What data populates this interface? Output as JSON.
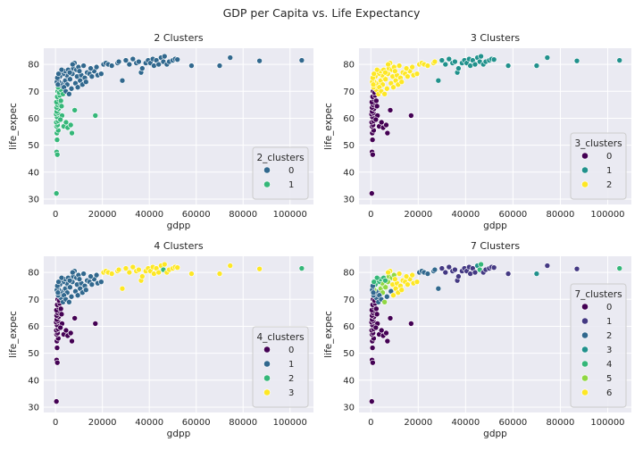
{
  "figure_title": "GDP per Capita vs. Life Expectancy",
  "chart_data": [
    {
      "type": "scatter",
      "title": "2 Clusters",
      "xlabel": "gdpp",
      "ylabel": "life_expec",
      "xlim": [
        -5000,
        110000
      ],
      "ylim": [
        28,
        86
      ],
      "xticks": [
        0,
        20000,
        40000,
        60000,
        80000,
        100000
      ],
      "xtick_labels": [
        "0",
        "20000",
        "40000",
        "60000",
        "80000",
        "100000"
      ],
      "yticks": [
        30,
        40,
        50,
        60,
        70,
        80
      ],
      "ytick_labels": [
        "30",
        "40",
        "50",
        "60",
        "70",
        "80"
      ],
      "legend_title": "2_clusters",
      "legend_position": "lower-right",
      "clusters": [
        {
          "label": "0",
          "color": "#31688e"
        },
        {
          "label": "1",
          "color": "#35b779"
        }
      ]
    },
    {
      "type": "scatter",
      "title": "3 Clusters",
      "xlabel": "gdpp",
      "ylabel": "life_expec",
      "xlim": [
        -5000,
        110000
      ],
      "ylim": [
        28,
        86
      ],
      "xticks": [
        0,
        20000,
        40000,
        60000,
        80000,
        100000
      ],
      "xtick_labels": [
        "0",
        "20000",
        "40000",
        "60000",
        "80000",
        "100000"
      ],
      "yticks": [
        30,
        40,
        50,
        60,
        70,
        80
      ],
      "ytick_labels": [
        "30",
        "40",
        "50",
        "60",
        "70",
        "80"
      ],
      "legend_title": "3_clusters",
      "legend_position": "lower-right",
      "clusters": [
        {
          "label": "0",
          "color": "#440154"
        },
        {
          "label": "1",
          "color": "#21918c"
        },
        {
          "label": "2",
          "color": "#fde725"
        }
      ]
    },
    {
      "type": "scatter",
      "title": "4 Clusters",
      "xlabel": "gdpp",
      "ylabel": "life_expec",
      "xlim": [
        -5000,
        110000
      ],
      "ylim": [
        28,
        86
      ],
      "xticks": [
        0,
        20000,
        40000,
        60000,
        80000,
        100000
      ],
      "xtick_labels": [
        "0",
        "20000",
        "40000",
        "60000",
        "80000",
        "100000"
      ],
      "yticks": [
        30,
        40,
        50,
        60,
        70,
        80
      ],
      "ytick_labels": [
        "30",
        "40",
        "50",
        "60",
        "70",
        "80"
      ],
      "legend_title": "4_clusters",
      "legend_position": "lower-right",
      "clusters": [
        {
          "label": "0",
          "color": "#440154"
        },
        {
          "label": "1",
          "color": "#31688e"
        },
        {
          "label": "2",
          "color": "#35b779"
        },
        {
          "label": "3",
          "color": "#fde725"
        }
      ]
    },
    {
      "type": "scatter",
      "title": "7 Clusters",
      "xlabel": "gdpp",
      "ylabel": "life_expec",
      "xlim": [
        -5000,
        110000
      ],
      "ylim": [
        28,
        86
      ],
      "xticks": [
        0,
        20000,
        40000,
        60000,
        80000,
        100000
      ],
      "xtick_labels": [
        "0",
        "20000",
        "40000",
        "60000",
        "80000",
        "100000"
      ],
      "yticks": [
        30,
        40,
        50,
        60,
        70,
        80
      ],
      "ytick_labels": [
        "30",
        "40",
        "50",
        "60",
        "70",
        "80"
      ],
      "legend_title": "7_clusters",
      "legend_position": "lower-right",
      "clusters": [
        {
          "label": "0",
          "color": "#440154"
        },
        {
          "label": "1",
          "color": "#443983"
        },
        {
          "label": "2",
          "color": "#31688e"
        },
        {
          "label": "3",
          "color": "#21918c"
        },
        {
          "label": "4",
          "color": "#35b779"
        },
        {
          "label": "5",
          "color": "#90d743"
        },
        {
          "label": "6",
          "color": "#fde725"
        }
      ]
    }
  ],
  "points": {
    "columns": [
      "gdpp",
      "life_expec",
      "k2",
      "k3",
      "k4",
      "k7"
    ],
    "rows": [
      [
        400,
        32.1,
        1,
        0,
        0,
        0
      ],
      [
        500,
        47.5,
        1,
        0,
        0,
        0
      ],
      [
        800,
        46.5,
        1,
        0,
        0,
        0
      ],
      [
        700,
        52,
        1,
        0,
        0,
        0
      ],
      [
        600,
        54.5,
        1,
        0,
        0,
        0
      ],
      [
        1200,
        55.5,
        1,
        0,
        0,
        0
      ],
      [
        450,
        57,
        1,
        0,
        0,
        0
      ],
      [
        900,
        57.5,
        1,
        0,
        0,
        0
      ],
      [
        350,
        58.5,
        1,
        0,
        0,
        0
      ],
      [
        1100,
        59,
        1,
        0,
        0,
        0
      ],
      [
        1500,
        60,
        1,
        0,
        0,
        0
      ],
      [
        650,
        60.5,
        1,
        0,
        0,
        0
      ],
      [
        300,
        61.5,
        1,
        0,
        0,
        0
      ],
      [
        1000,
        62,
        1,
        0,
        0,
        0
      ],
      [
        550,
        62.5,
        1,
        0,
        0,
        0
      ],
      [
        1300,
        63.5,
        1,
        0,
        0,
        0
      ],
      [
        480,
        64,
        1,
        0,
        0,
        0
      ],
      [
        850,
        65,
        1,
        0,
        0,
        0
      ],
      [
        1700,
        65.5,
        1,
        0,
        0,
        0
      ],
      [
        420,
        66,
        1,
        0,
        0,
        0
      ],
      [
        1400,
        67,
        1,
        0,
        0,
        0
      ],
      [
        750,
        68,
        1,
        0,
        0,
        0
      ],
      [
        1800,
        68.5,
        1,
        0,
        0,
        0
      ],
      [
        2300,
        66.5,
        1,
        0,
        0,
        0
      ],
      [
        2600,
        64.5,
        1,
        0,
        0,
        0
      ],
      [
        2800,
        61,
        1,
        0,
        0,
        0
      ],
      [
        2100,
        59.5,
        1,
        0,
        0,
        0
      ],
      [
        3500,
        57,
        1,
        0,
        0,
        0
      ],
      [
        4500,
        58.5,
        1,
        0,
        0,
        0
      ],
      [
        5200,
        56.5,
        1,
        0,
        0,
        0
      ],
      [
        7000,
        54.5,
        1,
        0,
        0,
        0
      ],
      [
        6500,
        57.5,
        1,
        0,
        0,
        0
      ],
      [
        8200,
        63,
        1,
        0,
        0,
        0
      ],
      [
        17000,
        61,
        1,
        0,
        0,
        0
      ],
      [
        950,
        70,
        1,
        0,
        0,
        0
      ],
      [
        1600,
        69.5,
        1,
        0,
        0,
        0
      ],
      [
        2400,
        70.5,
        1,
        2,
        1,
        2
      ],
      [
        1150,
        71.5,
        1,
        2,
        1,
        2
      ],
      [
        3200,
        69,
        1,
        2,
        1,
        2
      ],
      [
        2900,
        72,
        0,
        2,
        1,
        2
      ],
      [
        3800,
        73.5,
        0,
        2,
        1,
        2
      ],
      [
        2200,
        73,
        0,
        2,
        1,
        2
      ],
      [
        4200,
        74,
        0,
        2,
        1,
        5
      ],
      [
        5000,
        72.5,
        0,
        2,
        1,
        5
      ],
      [
        5600,
        75,
        0,
        2,
        1,
        5
      ],
      [
        6200,
        74.5,
        0,
        2,
        1,
        5
      ],
      [
        4800,
        76,
        0,
        2,
        1,
        5
      ],
      [
        7200,
        76.5,
        0,
        2,
        1,
        5
      ],
      [
        6800,
        71,
        0,
        2,
        1,
        2
      ],
      [
        8500,
        73,
        0,
        2,
        1,
        2
      ],
      [
        9200,
        75.5,
        0,
        2,
        1,
        6
      ],
      [
        10500,
        74,
        0,
        2,
        1,
        6
      ],
      [
        11000,
        76,
        0,
        2,
        1,
        6
      ],
      [
        12500,
        75,
        0,
        2,
        1,
        6
      ],
      [
        3300,
        76.5,
        0,
        2,
        1,
        4
      ],
      [
        4100,
        77.5,
        0,
        2,
        1,
        4
      ],
      [
        5400,
        78,
        0,
        2,
        1,
        4
      ],
      [
        6100,
        77,
        0,
        2,
        1,
        4
      ],
      [
        7600,
        78.5,
        0,
        2,
        1,
        5
      ],
      [
        8900,
        78,
        0,
        2,
        1,
        5
      ],
      [
        9800,
        79,
        0,
        2,
        1,
        5
      ],
      [
        8100,
        80.5,
        0,
        2,
        1,
        6
      ],
      [
        7300,
        80,
        0,
        2,
        1,
        6
      ],
      [
        10200,
        77.5,
        0,
        2,
        1,
        6
      ],
      [
        12000,
        79.5,
        0,
        2,
        1,
        6
      ],
      [
        13500,
        77,
        0,
        2,
        1,
        6
      ],
      [
        14500,
        76.5,
        0,
        2,
        1,
        6
      ],
      [
        15500,
        75.5,
        0,
        2,
        1,
        6
      ],
      [
        16500,
        77.5,
        0,
        2,
        1,
        6
      ],
      [
        18000,
        76,
        0,
        2,
        1,
        6
      ],
      [
        19500,
        76.5,
        0,
        2,
        1,
        6
      ],
      [
        20500,
        80,
        0,
        2,
        3,
        2
      ],
      [
        21500,
        80.5,
        0,
        2,
        3,
        2
      ],
      [
        22500,
        80,
        0,
        2,
        3,
        2
      ],
      [
        24000,
        79.5,
        0,
        2,
        3,
        2
      ],
      [
        26500,
        80.5,
        0,
        2,
        3,
        2
      ],
      [
        28500,
        74,
        0,
        1,
        3,
        2
      ],
      [
        27000,
        81,
        0,
        2,
        3,
        2
      ],
      [
        30000,
        81.5,
        0,
        1,
        3,
        1
      ],
      [
        31500,
        80,
        0,
        1,
        3,
        1
      ],
      [
        33000,
        82,
        0,
        1,
        3,
        1
      ],
      [
        34500,
        80.5,
        0,
        1,
        3,
        1
      ],
      [
        35500,
        81,
        0,
        1,
        3,
        1
      ],
      [
        36500,
        77,
        0,
        1,
        3,
        1
      ],
      [
        37000,
        78.5,
        0,
        1,
        3,
        1
      ],
      [
        38500,
        80.5,
        0,
        1,
        3,
        1
      ],
      [
        39500,
        81.5,
        0,
        1,
        3,
        1
      ],
      [
        40500,
        80.5,
        0,
        1,
        3,
        1
      ],
      [
        41500,
        82,
        0,
        1,
        3,
        1
      ],
      [
        42000,
        79.5,
        0,
        1,
        3,
        1
      ],
      [
        43000,
        81.5,
        0,
        1,
        3,
        1
      ],
      [
        44000,
        80,
        0,
        1,
        3,
        1
      ],
      [
        45000,
        82.5,
        0,
        1,
        3,
        3
      ],
      [
        46000,
        81,
        0,
        1,
        2,
        4
      ],
      [
        46500,
        83,
        0,
        1,
        3,
        4
      ],
      [
        47500,
        80,
        0,
        1,
        3,
        1
      ],
      [
        48500,
        81,
        0,
        1,
        3,
        1
      ],
      [
        50000,
        81.5,
        0,
        1,
        3,
        1
      ],
      [
        51000,
        82,
        0,
        1,
        3,
        1
      ],
      [
        52000,
        81.8,
        0,
        1,
        3,
        1
      ],
      [
        58000,
        79.5,
        0,
        1,
        3,
        1
      ],
      [
        70000,
        79.5,
        0,
        1,
        3,
        3
      ],
      [
        74500,
        82.5,
        0,
        1,
        3,
        1
      ],
      [
        87000,
        81.3,
        0,
        1,
        3,
        1
      ],
      [
        105000,
        81.5,
        0,
        1,
        2,
        4
      ],
      [
        2600,
        78,
        0,
        2,
        1,
        4
      ],
      [
        1900,
        75.5,
        0,
        2,
        1,
        4
      ],
      [
        3600,
        71.5,
        0,
        2,
        1,
        2
      ],
      [
        1400,
        73.5,
        0,
        2,
        1,
        5
      ],
      [
        4400,
        70,
        0,
        2,
        1,
        2
      ],
      [
        5800,
        69,
        0,
        2,
        1,
        5
      ],
      [
        11500,
        72.5,
        0,
        2,
        1,
        6
      ],
      [
        13000,
        73.5,
        0,
        2,
        1,
        6
      ],
      [
        9500,
        71.5,
        0,
        2,
        1,
        6
      ],
      [
        15000,
        78.5,
        0,
        2,
        1,
        6
      ],
      [
        17500,
        79,
        0,
        2,
        1,
        6
      ],
      [
        600,
        73.5,
        0,
        2,
        1,
        2
      ],
      [
        1050,
        72.5,
        0,
        2,
        1,
        2
      ],
      [
        800,
        75,
        0,
        2,
        1,
        2
      ],
      [
        1300,
        76.5,
        0,
        2,
        1,
        4
      ]
    ]
  }
}
